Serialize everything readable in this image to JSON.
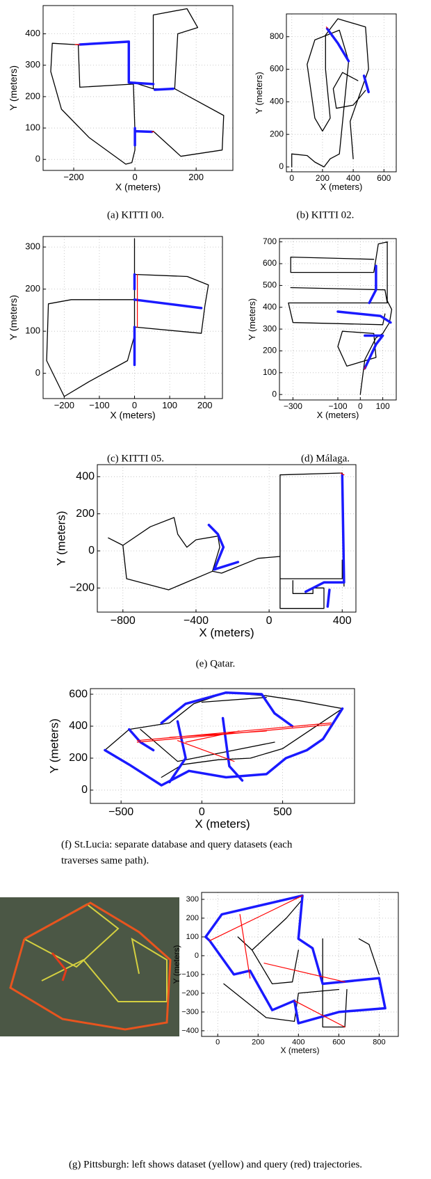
{
  "chart_data": [
    {
      "type": "line",
      "caption": [
        "(a) KITTI 00."
      ],
      "x_label": "X (meters)",
      "y_label": "Y (meters)",
      "grid": true,
      "xlim": [
        -300,
        320
      ],
      "ylim": [
        -35,
        490
      ],
      "xticks": [
        {
          "value": -200,
          "label": "−200"
        },
        0,
        200
      ],
      "yticks": [
        0,
        100,
        200,
        300,
        400
      ],
      "series": [
        {
          "color": "#000000",
          "x": [
            -185,
            -270,
            -275,
            -240,
            -150,
            -30,
            -10,
            0,
            0,
            -5,
            -180,
            -185,
            null,
            -5,
            60,
            60,
            170,
            205,
            140,
            130,
            60,
            null,
            130,
            290,
            285,
            150,
            60,
            0
          ],
          "y": [
            365,
            370,
            280,
            160,
            70,
            -15,
            -10,
            30,
            90,
            240,
            230,
            365,
            null,
            245,
            225,
            460,
            480,
            420,
            400,
            225,
            225,
            null,
            225,
            140,
            30,
            10,
            90,
            90
          ]
        },
        {
          "color": "#1a1aff",
          "x": [
            -180,
            -20,
            -20,
            60,
            null,
            65,
            125,
            null,
            0,
            0,
            null,
            0,
            55
          ],
          "y": [
            366,
            375,
            245,
            240,
            null,
            222,
            225,
            null,
            100,
            45,
            null,
            90,
            88
          ]
        },
        {
          "color": "#ff0000",
          "x": [
            -195,
            -180,
            null,
            55,
            62
          ],
          "y": [
            366,
            366,
            null,
            88,
            88
          ]
        }
      ]
    },
    {
      "type": "line",
      "caption": [
        "(b) KITTI 02."
      ],
      "x_label": "X (meters)",
      "y_label": "Y (meters)",
      "grid": true,
      "xlim": [
        -35,
        680
      ],
      "ylim": [
        -30,
        940
      ],
      "xticks": [
        0,
        200,
        400,
        600
      ],
      "yticks": [
        0,
        200,
        400,
        600,
        800
      ],
      "series": [
        {
          "color": "#000000",
          "x": [
            0,
            0,
            100,
            150,
            210,
            250,
            310,
            370,
            310,
            150,
            100,
            150,
            200,
            250,
            220,
            220,
            300,
            480,
            500,
            380,
            400,
            null,
            430,
            330,
            270,
            290,
            400,
            480
          ],
          "y": [
            0,
            80,
            70,
            30,
            0,
            50,
            80,
            650,
            840,
            780,
            630,
            300,
            220,
            300,
            600,
            810,
            910,
            860,
            600,
            280,
            50,
            null,
            530,
            580,
            480,
            360,
            380,
            470
          ]
        },
        {
          "color": "#1a1aff",
          "x": [
            230,
            300,
            370,
            null,
            470,
            500
          ],
          "y": [
            850,
            760,
            650,
            null,
            560,
            460
          ]
        },
        {
          "color": "#ff0000",
          "x": [
            225,
            232
          ],
          "y": [
            860,
            852
          ]
        }
      ]
    },
    {
      "type": "line",
      "caption": [
        "(c) KITTI 05."
      ],
      "x_label": "X (meters)",
      "y_label": "Y (meters)",
      "grid": true,
      "xlim": [
        -260,
        250
      ],
      "ylim": [
        -60,
        325
      ],
      "xticks": [
        {
          "value": -200,
          "label": "−200"
        },
        {
          "value": -100,
          "label": "−100"
        },
        0,
        100,
        200
      ],
      "yticks": [
        0,
        100,
        200,
        300
      ],
      "series": [
        {
          "color": "#000000",
          "x": [
            0,
            0,
            -20,
            -130,
            -200,
            -250,
            -245,
            -180,
            0,
            null,
            0,
            150,
            210,
            200,
            190,
            0
          ],
          "y": [
            320,
            90,
            30,
            -20,
            -55,
            30,
            165,
            175,
            175,
            null,
            235,
            230,
            210,
            160,
            95,
            110
          ]
        },
        {
          "color": "#1a1aff",
          "x": [
            0,
            0,
            null,
            0,
            190,
            null,
            0,
            0
          ],
          "y": [
            235,
            200,
            null,
            175,
            155,
            null,
            110,
            20
          ]
        },
        {
          "color": "#ff0000",
          "x": [
            8,
            8
          ],
          "y": [
            235,
            110
          ]
        }
      ]
    },
    {
      "type": "line",
      "caption": [
        "(d) Málaga."
      ],
      "x_label": "X (meters)",
      "y_label": "Y (meters)",
      "grid": true,
      "xlim": [
        -360,
        160
      ],
      "ylim": [
        -25,
        715
      ],
      "xticks": [
        {
          "value": -300,
          "label": "−300"
        },
        {
          "value": -100,
          "label": "−100"
        },
        0,
        100
      ],
      "yticks": [
        0,
        100,
        200,
        300,
        400,
        500,
        600,
        700
      ],
      "series": [
        {
          "color": "#000000",
          "x": [
            0,
            20,
            70,
            100,
            130,
            140,
            120,
            120,
            80,
            60,
            -310,
            -310,
            60,
            null,
            -310,
            110,
            120,
            -320,
            -300,
            100,
            110,
            null,
            -100,
            -60,
            70,
            60,
            -80,
            -100
          ],
          "y": [
            0,
            160,
            260,
            280,
            330,
            390,
            430,
            700,
            690,
            560,
            560,
            630,
            620,
            null,
            490,
            480,
            420,
            420,
            330,
            320,
            370,
            null,
            220,
            130,
            170,
            280,
            290,
            220
          ]
        },
        {
          "color": "#1a1aff",
          "x": [
            20,
            70,
            100,
            null,
            -100,
            90,
            135,
            null,
            70,
            70,
            40,
            null,
            20,
            100
          ],
          "y": [
            120,
            230,
            270,
            null,
            380,
            360,
            330,
            null,
            590,
            480,
            420,
            null,
            270,
            270
          ]
        },
        {
          "color": "#ff0000",
          "x": [
            18,
            24
          ],
          "y": [
            115,
            128
          ]
        }
      ]
    },
    {
      "type": "line",
      "caption": [
        "(e) Qatar."
      ],
      "x_label": "X (meters)",
      "y_label": "Y (meters)",
      "grid": true,
      "xlim": [
        -940,
        475
      ],
      "ylim": [
        -330,
        465
      ],
      "xticks": [
        {
          "value": -800,
          "label": "−800"
        },
        {
          "value": -400,
          "label": "−400"
        },
        0,
        400
      ],
      "yticks": [
        {
          "value": -200,
          "label": "−200"
        },
        0,
        200,
        400
      ],
      "series": [
        {
          "color": "#000000",
          "x": [
            -880,
            -800,
            -650,
            -520,
            -500,
            -450,
            -400,
            -280,
            -270,
            -310,
            -260,
            -60,
            60,
            60,
            400,
            400,
            null,
            60,
            300,
            300,
            240,
            240,
            130,
            130,
            null,
            -800,
            -780,
            -550,
            -310,
            null,
            60,
            60,
            400,
            410
          ],
          "y": [
            70,
            30,
            130,
            180,
            90,
            20,
            60,
            80,
            20,
            -110,
            -120,
            -40,
            -30,
            -150,
            -150,
            -50,
            null,
            -310,
            -310,
            -200,
            -200,
            -230,
            -230,
            -160,
            null,
            30,
            -150,
            -210,
            -110,
            null,
            -310,
            410,
            420,
            -190
          ]
        },
        {
          "color": "#1a1aff",
          "x": [
            -330,
            -280,
            -250,
            -300,
            -170,
            null,
            400,
            410,
            300,
            200,
            null,
            320,
            330
          ],
          "y": [
            140,
            90,
            20,
            -100,
            -60,
            null,
            410,
            -170,
            -170,
            -220,
            null,
            -300,
            -210
          ]
        },
        {
          "color": "#ff0000",
          "x": [
            390,
            410
          ],
          "y": [
            420,
            410
          ]
        }
      ]
    },
    {
      "type": "line",
      "caption": [
        "(f) St.Lucia: separate database and query datasets (each",
        "traverses same path)."
      ],
      "x_label": "X (meters)",
      "y_label": "Y (meters)",
      "grid": true,
      "xlim": [
        -690,
        945
      ],
      "ylim": [
        -83,
        635
      ],
      "xticks": [
        {
          "value": -500,
          "label": "−500"
        },
        0,
        500
      ],
      "yticks": [
        0,
        200,
        400,
        600
      ],
      "series": [
        {
          "color": "#000000",
          "x": [
            -600,
            -450,
            -200,
            -50,
            150,
            400,
            600,
            870,
            500,
            300,
            100,
            -120,
            -250,
            null,
            -380,
            -150,
            200,
            450,
            null,
            0,
            400
          ],
          "y": [
            250,
            380,
            420,
            540,
            610,
            590,
            560,
            510,
            260,
            200,
            190,
            160,
            80,
            null,
            380,
            180,
            250,
            300,
            null,
            550,
            580
          ]
        },
        {
          "color": "#1a1aff",
          "x": [
            -600,
            -450,
            -250,
            -80,
            150,
            400,
            520,
            650,
            750,
            870,
            null,
            -450,
            -380,
            -300,
            null,
            -250,
            -100,
            150,
            370,
            450,
            560,
            null,
            130,
            150,
            170,
            250,
            null,
            -150,
            -100,
            -200
          ],
          "y": [
            250,
            160,
            30,
            120,
            80,
            100,
            200,
            250,
            320,
            510,
            null,
            380,
            300,
            250,
            null,
            420,
            540,
            610,
            600,
            480,
            400,
            null,
            450,
            300,
            150,
            60,
            null,
            430,
            200,
            50
          ]
        },
        {
          "color": "#ff0000",
          "x": [
            -400,
            800,
            null,
            -400,
            800,
            null,
            -200,
            400,
            null,
            -150,
            200,
            null,
            -100,
            230
          ],
          "y": [
            310,
            420,
            null,
            300,
            410,
            null,
            330,
            370,
            null,
            310,
            180,
            null,
            300,
            370
          ]
        }
      ]
    },
    {
      "type": "line",
      "caption": [
        "(g) Pittsburgh: left shows dataset (yellow) and query (red) trajectories."
      ],
      "x_label": "X (meters)",
      "y_label": "Y (meters)",
      "grid": true,
      "xlim": [
        -80,
        895
      ],
      "ylim": [
        -430,
        337
      ],
      "xticks": [
        0,
        200,
        400,
        600,
        800
      ],
      "yticks": [
        {
          "value": -400,
          "label": "−400"
        },
        {
          "value": -300,
          "label": "−300"
        },
        {
          "value": -200,
          "label": "−200"
        },
        {
          "value": -100,
          "label": "−100"
        },
        0,
        100,
        200,
        300
      ],
      "series": [
        {
          "color": "#000000",
          "x": [
            100,
            170,
            340,
            420,
            null,
            170,
            270,
            370,
            400,
            null,
            520,
            520,
            630,
            640,
            null,
            30,
            240,
            380,
            400,
            600,
            null,
            700,
            750,
            800
          ],
          "y": [
            100,
            30,
            200,
            300,
            null,
            30,
            -150,
            -140,
            30,
            null,
            90,
            -380,
            -380,
            -180,
            null,
            -150,
            -330,
            -350,
            -200,
            -180,
            null,
            90,
            60,
            -100
          ]
        },
        {
          "color": "#1a1aff",
          "x": [
            -60,
            20,
            420,
            400,
            470,
            520,
            800,
            830,
            600,
            400,
            380,
            270,
            160,
            80,
            -40,
            -60
          ],
          "y": [
            100,
            220,
            320,
            90,
            40,
            -150,
            -120,
            -280,
            -300,
            -360,
            -240,
            -290,
            -80,
            -100,
            80,
            100
          ]
        },
        {
          "color": "#ff0000",
          "x": [
            -40,
            420,
            null,
            110,
            160,
            null,
            230,
            630,
            null,
            380,
            630
          ],
          "y": [
            80,
            320,
            null,
            220,
            -120,
            null,
            -40,
            -140,
            null,
            -240,
            -380
          ]
        }
      ]
    }
  ]
}
